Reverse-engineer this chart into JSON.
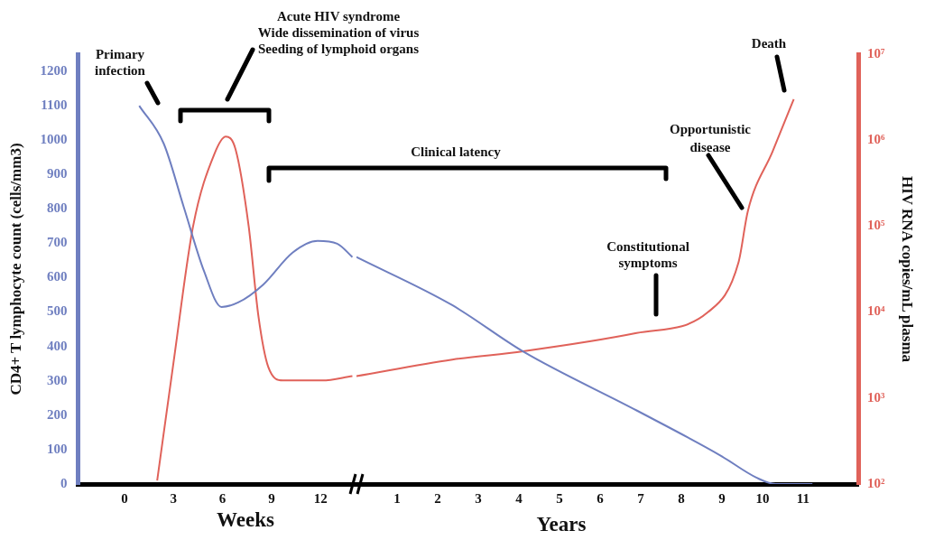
{
  "chart_data": [
    {
      "type": "line",
      "xlabel": "Weeks",
      "ylabel": "CD4+ T lymphocyte count (cells/mm3)",
      "xlim": [
        -2.85,
        14.2
      ],
      "xticks": [
        0,
        3,
        6,
        9,
        12
      ],
      "ylim": [
        0,
        1250
      ],
      "yticks": [
        0,
        100,
        200,
        300,
        400,
        500,
        600,
        700,
        800,
        900,
        1000,
        1100,
        1200
      ],
      "log": "y2",
      "y2lim": [
        100,
        10000000
      ],
      "series": [
        {
          "color": "#6f7fc0",
          "x": [
            0.9,
            2.4,
            3.63,
            4.86,
            5.94,
            6.96,
            8.49,
            10.29,
            11.82,
            13.02,
            13.95
          ],
          "values": [
            1100,
            990,
            805,
            620,
            515,
            528,
            580,
            673,
            707,
            699,
            660
          ]
        },
        {
          "color": "#e0625a",
          "axis": "y2",
          "x": [
            2.0,
            3.0,
            4.2,
            5.5,
            6.2,
            6.8,
            7.6,
            8.2,
            8.8,
            9.7,
            12.1,
            13.95
          ],
          "values": [
            110,
            2600,
            100000,
            690000,
            1100000,
            780000,
            100000,
            8900,
            2300,
            1600,
            1600,
            1800
          ]
        }
      ],
      "annotations": [
        "Primary\ninfection",
        "Acute HIV syndrome\nWide dissemination of virus\nSeeding of lymphoid organs",
        "Clinical latency"
      ],
      "legend": false,
      "grid": false,
      "marker": "none",
      "line_style": "solid"
    },
    {
      "type": "line",
      "xlabel": "Years",
      "y2label": "HIV RNA copies/mL plasma",
      "xlim": [
        0,
        12.36
      ],
      "xticks": [
        1,
        2,
        3,
        4,
        5,
        6,
        7,
        8,
        9,
        10,
        11
      ],
      "ylim": [
        0,
        1250
      ],
      "log": "y2",
      "y2lim": [
        100,
        10000000
      ],
      "y2ticks": [
        {
          "value": 100,
          "label": "10²"
        },
        {
          "value": 1000,
          "label": "10³"
        },
        {
          "value": 10000,
          "label": "10⁴"
        },
        {
          "value": 100000,
          "label": "10⁵"
        },
        {
          "value": 1000000,
          "label": "10⁶"
        },
        {
          "value": 10000000,
          "label": "10⁷"
        }
      ],
      "series": [
        {
          "color": "#6f7fc0",
          "x": [
            0,
            2.36,
            4.11,
            6.9,
            8.95,
            9.86,
            10.32,
            11.23
          ],
          "values": [
            660,
            520,
            385,
            214,
            84,
            18,
            0,
            0
          ]
        },
        {
          "color": "#e0625a",
          "axis": "y2",
          "x": [
            0,
            2.36,
            4.11,
            6.9,
            8.66,
            9.41,
            9.64,
            10.25,
            10.77
          ],
          "values": [
            1800,
            2800,
            3500,
            5700,
            10000,
            38000,
            150000,
            740000,
            3000000
          ]
        }
      ],
      "annotations": [
        "Constitutional\nsymptoms",
        "Opportunistic\ndisease",
        "Death"
      ],
      "legend": false,
      "grid": false,
      "marker": "none",
      "line_style": "solid"
    }
  ]
}
